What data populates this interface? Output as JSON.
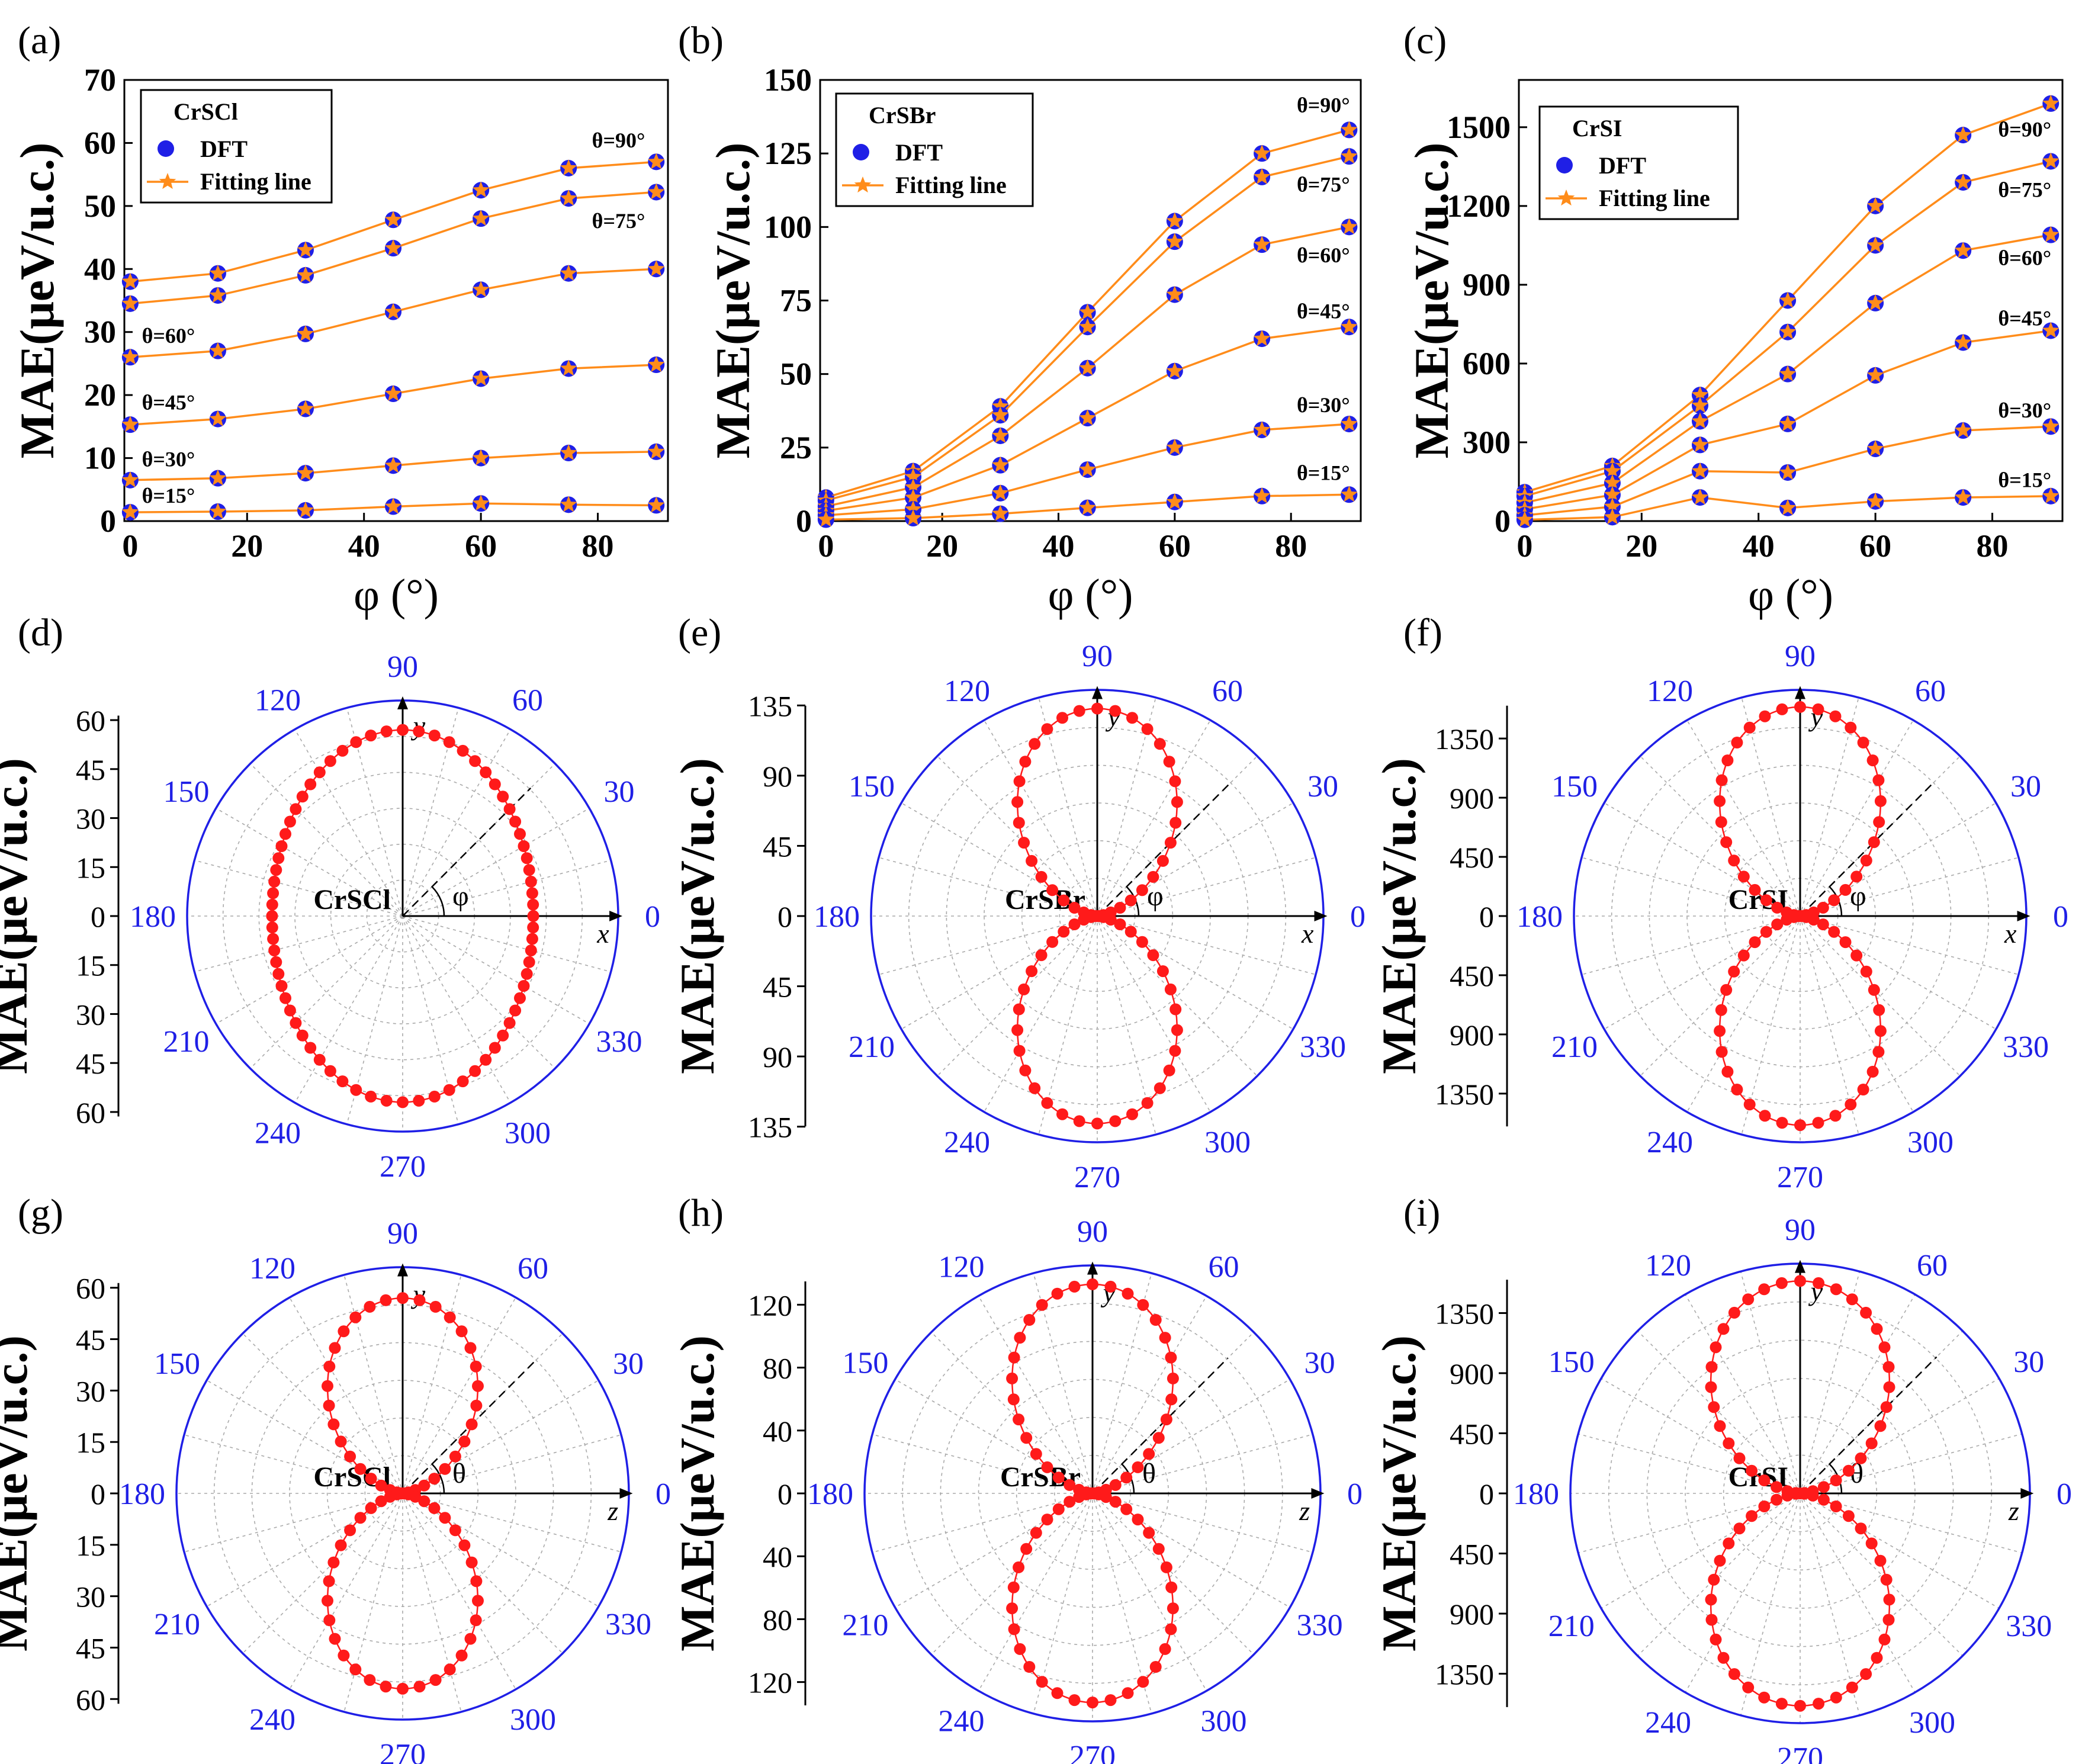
{
  "figure": {
    "dft_color": "#1f1fe6",
    "fit_color": "#ff8c1a",
    "polar_color": "#ff1a1a",
    "angle_color": "#1f1fe6"
  },
  "chart_data": [
    {
      "id": "a",
      "type": "line",
      "panel_label": "(a)",
      "legend_title": "CrSCl",
      "legend_items": [
        "DFT",
        "Fitting line"
      ],
      "xlabel": "φ (°)",
      "ylabel": "MAE(μeV/u.c.)",
      "xlim": [
        -1,
        92
      ],
      "ylim": [
        0,
        70
      ],
      "xticks": [
        0,
        20,
        40,
        60,
        80
      ],
      "yticks": [
        0,
        10,
        20,
        30,
        40,
        50,
        60,
        70
      ],
      "x": [
        0,
        15,
        30,
        45,
        60,
        75,
        90
      ],
      "series": [
        {
          "name": "θ=90°",
          "values": [
            38,
            39.3,
            43,
            47.8,
            52.5,
            56,
            57
          ],
          "label_at": [
            79,
            59.3
          ]
        },
        {
          "name": "θ=75°",
          "values": [
            34.5,
            35.8,
            39,
            43.3,
            48,
            51.2,
            52.2
          ],
          "label_at": [
            79,
            46.5
          ]
        },
        {
          "name": "θ=60°",
          "values": [
            26,
            27,
            29.7,
            33.2,
            36.7,
            39.3,
            40
          ],
          "label_at": [
            2,
            28.3
          ]
        },
        {
          "name": "θ=45°",
          "values": [
            15.3,
            16.2,
            17.8,
            20.2,
            22.6,
            24.2,
            24.8
          ],
          "label_at": [
            2,
            17.7
          ]
        },
        {
          "name": "θ=30°",
          "values": [
            6.5,
            6.8,
            7.6,
            8.8,
            10,
            10.8,
            11
          ],
          "label_at": [
            2,
            8.7
          ]
        },
        {
          "name": "θ=15°",
          "values": [
            1.4,
            1.5,
            1.7,
            2.3,
            2.8,
            2.6,
            2.5
          ],
          "label_at": [
            2,
            2.9
          ]
        }
      ]
    },
    {
      "id": "b",
      "type": "line",
      "panel_label": "(b)",
      "legend_title": "CrSBr",
      "legend_items": [
        "DFT",
        "Fitting line"
      ],
      "xlabel": "φ (°)",
      "ylabel": "MAE(μeV/u.c.)",
      "xlim": [
        -1,
        92
      ],
      "ylim": [
        0,
        150
      ],
      "xticks": [
        0,
        20,
        40,
        60,
        80
      ],
      "yticks": [
        0,
        25,
        50,
        75,
        100,
        125,
        150
      ],
      "x": [
        0,
        15,
        30,
        45,
        60,
        75,
        90
      ],
      "series": [
        {
          "name": "θ=90°",
          "values": [
            8,
            17,
            39,
            71,
            102,
            125,
            133
          ],
          "label_at": [
            81,
            139
          ]
        },
        {
          "name": "θ=75°",
          "values": [
            7,
            15,
            36,
            66,
            95,
            117,
            124
          ],
          "label_at": [
            81,
            112
          ]
        },
        {
          "name": "θ=60°",
          "values": [
            5,
            11.5,
            29,
            52,
            77,
            94,
            100
          ],
          "label_at": [
            81,
            88
          ]
        },
        {
          "name": "θ=45°",
          "values": [
            3.5,
            8,
            19,
            35,
            51,
            62,
            66
          ],
          "label_at": [
            81,
            69
          ]
        },
        {
          "name": "θ=30°",
          "values": [
            2,
            4,
            9.5,
            17.5,
            25,
            31,
            33
          ],
          "label_at": [
            81,
            37
          ]
        },
        {
          "name": "θ=15°",
          "values": [
            0.5,
            1,
            2.5,
            4.5,
            6.5,
            8.5,
            9
          ],
          "label_at": [
            81,
            14
          ]
        }
      ]
    },
    {
      "id": "c",
      "type": "line",
      "panel_label": "(c)",
      "legend_title": "CrSI",
      "legend_items": [
        "DFT",
        "Fitting line"
      ],
      "xlabel": "φ (°)",
      "ylabel": "MAE(μeV/u.c.)",
      "xlim": [
        -1,
        92
      ],
      "ylim": [
        0,
        1680
      ],
      "xticks": [
        0,
        20,
        40,
        60,
        80
      ],
      "yticks": [
        0,
        300,
        600,
        900,
        1200,
        1500
      ],
      "x": [
        0,
        15,
        30,
        45,
        60,
        75,
        90
      ],
      "series": [
        {
          "name": "θ=90°",
          "values": [
            110,
            210,
            480,
            840,
            1200,
            1470,
            1590
          ],
          "label_at": [
            81,
            1465
          ]
        },
        {
          "name": "θ=75°",
          "values": [
            95,
            190,
            440,
            720,
            1050,
            1290,
            1370
          ],
          "label_at": [
            81,
            1235
          ]
        },
        {
          "name": "θ=60°",
          "values": [
            70,
            145,
            380,
            560,
            830,
            1030,
            1090
          ],
          "label_at": [
            81,
            975
          ]
        },
        {
          "name": "θ=45°",
          "values": [
            45,
            100,
            290,
            370,
            555,
            680,
            725
          ],
          "label_at": [
            81,
            745
          ]
        },
        {
          "name": "θ=30°",
          "values": [
            22,
            55,
            190,
            185,
            275,
            345,
            360
          ],
          "label_at": [
            81,
            395
          ]
        },
        {
          "name": "θ=15°",
          "values": [
            5,
            15,
            90,
            50,
            75,
            90,
            95
          ],
          "label_at": [
            81,
            130
          ]
        }
      ]
    },
    {
      "id": "d",
      "type": "scatter",
      "polar": true,
      "panel_label": "(d)",
      "material": "CrSCl",
      "shape": "ellipse",
      "lobe_max": 57,
      "axis_min": 40,
      "r_max": 66,
      "rticks": [
        0,
        15,
        30,
        45,
        60
      ],
      "ylabel": "MAE(μeV/u.c.)",
      "angle_labels": [
        "0",
        "30",
        "60",
        "90",
        "120",
        "150",
        "180",
        "210",
        "240",
        "270",
        "300",
        "330"
      ],
      "axis_x": "x",
      "axis_y": "y",
      "angle_symbol": "φ"
    },
    {
      "id": "e",
      "type": "scatter",
      "polar": true,
      "panel_label": "(e)",
      "material": "CrSBr",
      "shape": "sin2",
      "lobe_max": 133,
      "r_max": 145,
      "rticks": [
        0,
        45,
        90,
        135
      ],
      "ylabel": "MAE(μeV/u.c.)",
      "angle_labels": [
        "0",
        "30",
        "60",
        "90",
        "120",
        "150",
        "180",
        "210",
        "240",
        "270",
        "300",
        "330"
      ],
      "axis_x": "x",
      "axis_y": "y",
      "angle_symbol": "φ"
    },
    {
      "id": "f",
      "type": "scatter",
      "polar": true,
      "panel_label": "(f)",
      "material": "CrSI",
      "shape": "sin2",
      "lobe_max": 1590,
      "r_max": 1720,
      "rticks": [
        0,
        450,
        900,
        1350
      ],
      "ylabel": "MAE(μeV/u.c.)",
      "angle_labels": [
        "0",
        "30",
        "60",
        "90",
        "120",
        "150",
        "180",
        "210",
        "240",
        "270",
        "300",
        "330"
      ],
      "axis_x": "x",
      "axis_y": "y",
      "angle_symbol": "φ"
    },
    {
      "id": "g",
      "type": "scatter",
      "polar": true,
      "panel_label": "(g)",
      "material": "CrSCl",
      "shape": "sin2",
      "lobe_max": 57,
      "r_max": 66,
      "rticks": [
        0,
        15,
        30,
        45,
        60
      ],
      "ylabel": "MAE(μeV/u.c.)",
      "angle_labels": [
        "0",
        "30",
        "60",
        "90",
        "120",
        "150",
        "180",
        "210",
        "240",
        "270",
        "300",
        "330"
      ],
      "axis_x": "z",
      "axis_y": "y",
      "angle_symbol": "θ"
    },
    {
      "id": "h",
      "type": "scatter",
      "polar": true,
      "panel_label": "(h)",
      "material": "CrSBr",
      "shape": "sin2",
      "lobe_max": 133,
      "r_max": 145,
      "rticks": [
        0,
        40,
        80,
        120
      ],
      "ylabel": "MAE(μeV/u.c.)",
      "angle_labels": [
        "0",
        "30",
        "60",
        "90",
        "120",
        "150",
        "180",
        "210",
        "240",
        "270",
        "300",
        "330"
      ],
      "axis_x": "z",
      "axis_y": "y",
      "angle_symbol": "θ"
    },
    {
      "id": "i",
      "type": "scatter",
      "polar": true,
      "panel_label": "(i)",
      "material": "CrSI",
      "shape": "cusp",
      "lobe_max": 1590,
      "r_max": 1720,
      "rticks": [
        0,
        450,
        900,
        1350
      ],
      "ylabel": "MAE(μeV/u.c.)",
      "angle_labels": [
        "0",
        "30",
        "60",
        "90",
        "120",
        "150",
        "180",
        "210",
        "240",
        "270",
        "300",
        "330"
      ],
      "axis_x": "z",
      "axis_y": "y",
      "angle_symbol": "θ"
    }
  ]
}
